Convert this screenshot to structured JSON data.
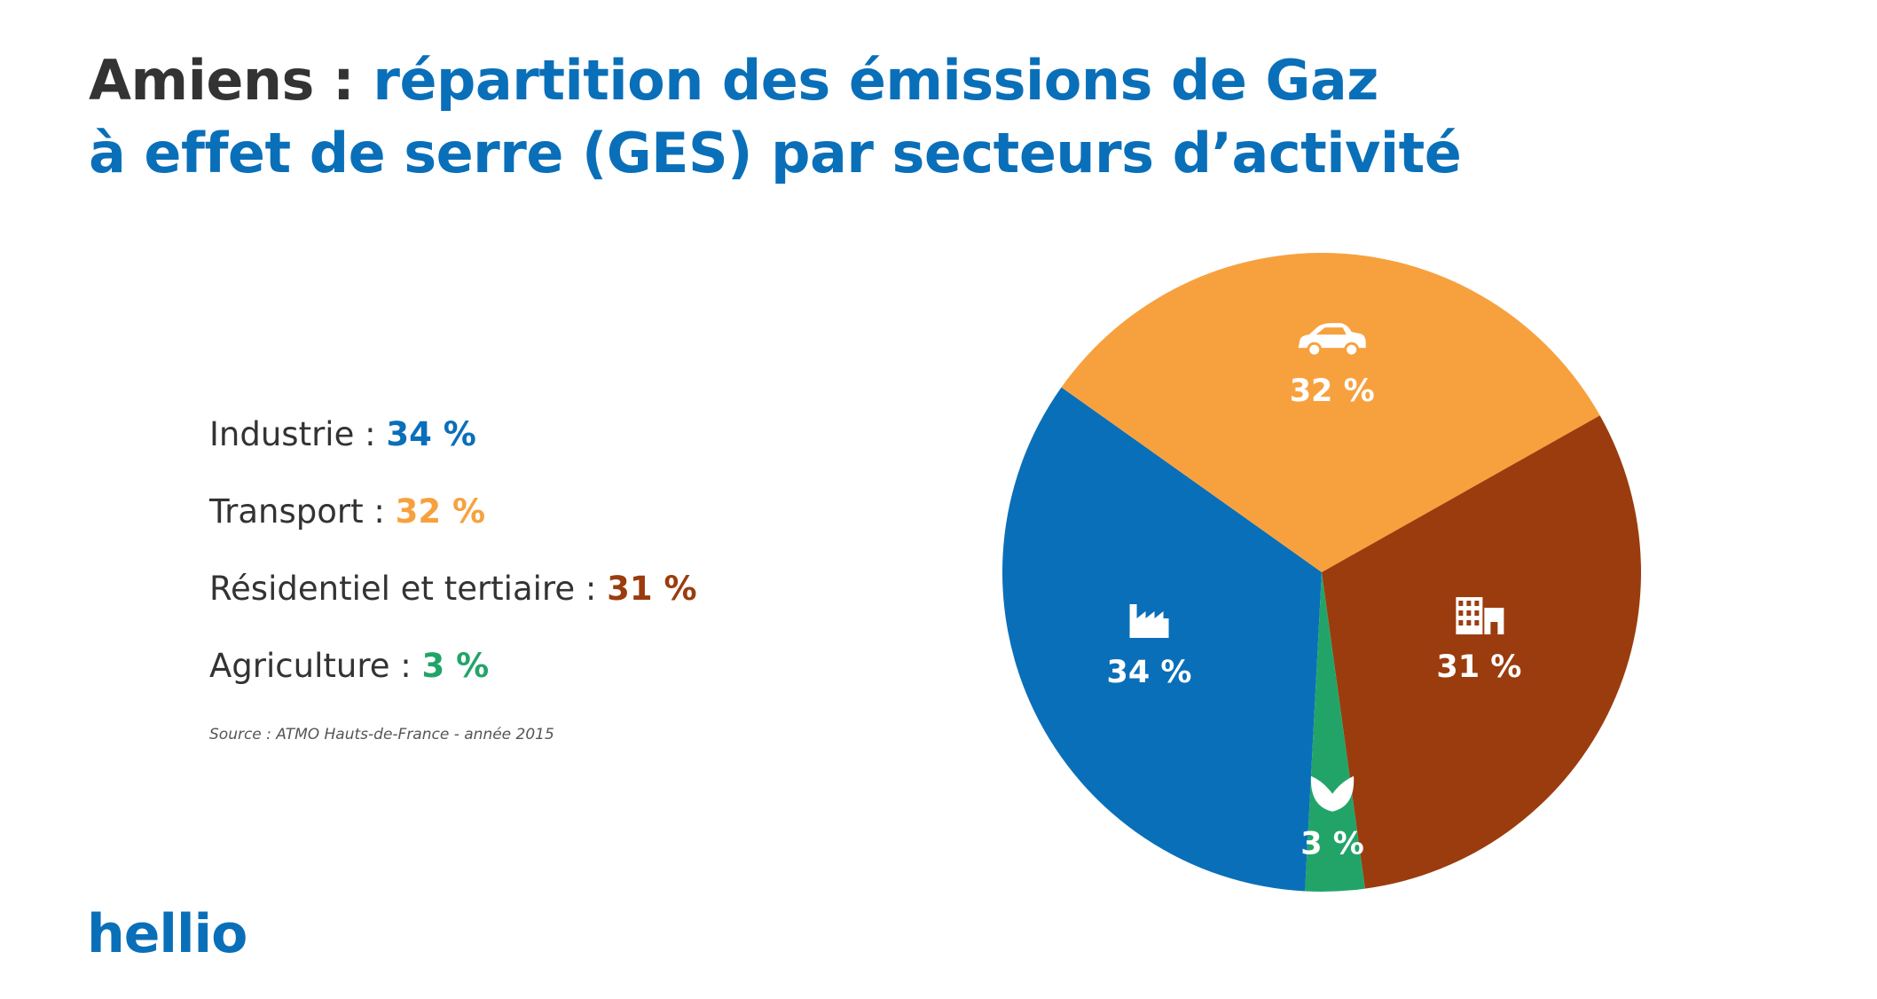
{
  "title": {
    "city": "Amiens :",
    "line1_rest": "répartition des émissions de Gaz",
    "line2": "à effet de serre (GES) par secteurs d’activité"
  },
  "legend": [
    {
      "label": "Industrie :",
      "value": "34 %"
    },
    {
      "label": "Transport :",
      "value": "32 %"
    },
    {
      "label": "Résidentiel et tertiaire :",
      "value": "31 %"
    },
    {
      "label": "Agriculture :",
      "value": "3 %"
    }
  ],
  "source": "Source : ATMO Hauts-de-France - année 2015",
  "logo": "hellio",
  "colors": {
    "industrie": "#0a6fb9",
    "transport": "#f7a13e",
    "residentiel": "#9b3c0e",
    "agriculture": "#22a469",
    "title_accent": "#0a6fb9",
    "text": "#333333"
  },
  "chart_data": {
    "type": "pie",
    "categories": [
      "Industrie",
      "Transport",
      "Résidentiel et tertiaire",
      "Agriculture"
    ],
    "values": [
      34,
      32,
      31,
      3
    ],
    "labels": [
      "34 %",
      "32 %",
      "31 %",
      "3 %"
    ],
    "icons": [
      "factory-icon",
      "car-icon",
      "buildings-icon",
      "leaf-icon"
    ],
    "colors": [
      "#0a6fb9",
      "#f7a13e",
      "#9b3c0e",
      "#22a469"
    ]
  }
}
